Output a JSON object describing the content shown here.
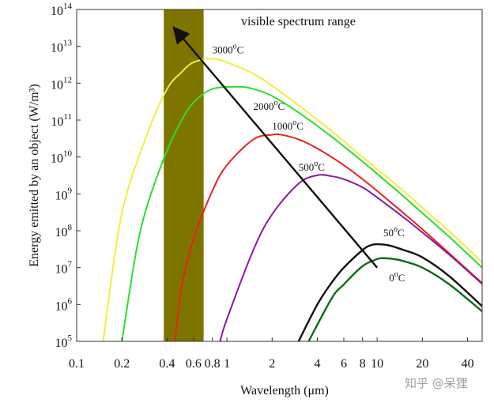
{
  "chart_data": {
    "type": "line",
    "title": "",
    "xlabel": "Wavelength (μm)",
    "ylabel": "Energy emitted by an object (W/m³)",
    "x_scale": "log",
    "y_scale": "log",
    "xlim": [
      0.1,
      50
    ],
    "ylim": [
      100000,
      100000000000000
    ],
    "x_ticks": [
      {
        "value": 0.1,
        "label": "0.1"
      },
      {
        "value": 0.2,
        "label": "0.2"
      },
      {
        "value": 0.4,
        "label": "0.4"
      },
      {
        "value": 0.6,
        "label": "0.6"
      },
      {
        "value": 0.8,
        "label": "0.8"
      },
      {
        "value": 1,
        "label": "1"
      },
      {
        "value": 2,
        "label": "2"
      },
      {
        "value": 4,
        "label": "4"
      },
      {
        "value": 6,
        "label": "6"
      },
      {
        "value": 8,
        "label": "8"
      },
      {
        "value": 10,
        "label": "10"
      },
      {
        "value": 20,
        "label": "20"
      },
      {
        "value": 40,
        "label": "40"
      }
    ],
    "y_ticks": [
      {
        "value": 100000,
        "base": "10",
        "exp": "5"
      },
      {
        "value": 1000000,
        "base": "10",
        "exp": "6"
      },
      {
        "value": 10000000,
        "base": "10",
        "exp": "7"
      },
      {
        "value": 100000000,
        "base": "10",
        "exp": "8"
      },
      {
        "value": 1000000000,
        "base": "10",
        "exp": "9"
      },
      {
        "value": 10000000000,
        "base": "10",
        "exp": "10"
      },
      {
        "value": 100000000000,
        "base": "10",
        "exp": "11"
      },
      {
        "value": 1000000000000,
        "base": "10",
        "exp": "12"
      },
      {
        "value": 10000000000000,
        "base": "10",
        "exp": "13"
      },
      {
        "value": 100000000000000,
        "base": "10",
        "exp": "14"
      }
    ],
    "band": {
      "label": "visible spectrum range",
      "x_range": [
        0.38,
        0.7
      ],
      "color": "#7d7500"
    },
    "arrow": {
      "from": [
        10,
        10000000
      ],
      "to": [
        0.45,
        30000000000000
      ],
      "color": "#111111"
    },
    "series": [
      {
        "name": "3000°C",
        "label_text": "3000",
        "label_sup": "o",
        "label_suffix": "C",
        "label_at": [
          0.8,
          6500000000000
        ],
        "color": "#f2ee3a",
        "points": [
          [
            0.15,
            100000
          ],
          [
            0.2,
            300000000
          ],
          [
            0.3,
            50000000000
          ],
          [
            0.4,
            700000000000
          ],
          [
            0.5,
            2000000000000
          ],
          [
            0.6,
            3700000000000
          ],
          [
            0.8,
            4600000000000
          ],
          [
            1,
            3700000000000
          ],
          [
            1.5,
            1800000000000
          ],
          [
            2,
            850000000000
          ],
          [
            3,
            250000000000
          ],
          [
            5,
            50000000000
          ],
          [
            8,
            10000000000
          ],
          [
            10,
            4700000000
          ],
          [
            15,
            1200000000
          ],
          [
            20,
            420000000
          ],
          [
            30,
            100000000
          ],
          [
            50,
            14000000
          ]
        ]
      },
      {
        "name": "2000°C",
        "label_text": "2000",
        "label_sup": "o",
        "label_suffix": "C",
        "label_at": [
          1.5,
          190000000000
        ],
        "color": "#2fdc32",
        "points": [
          [
            0.2,
            100000
          ],
          [
            0.25,
            30000000
          ],
          [
            0.3,
            600000000
          ],
          [
            0.4,
            15000000000
          ],
          [
            0.5,
            100000000000
          ],
          [
            0.6,
            300000000000
          ],
          [
            0.8,
            700000000000
          ],
          [
            1.2,
            800000000000
          ],
          [
            1.5,
            700000000000
          ],
          [
            2,
            450000000000
          ],
          [
            3,
            160000000000
          ],
          [
            5,
            35000000000
          ],
          [
            8,
            7500000000
          ],
          [
            10,
            3500000000
          ],
          [
            15,
            850000000
          ],
          [
            20,
            300000000
          ],
          [
            30,
            70000000
          ],
          [
            50,
            10000000
          ]
        ]
      },
      {
        "name": "1000°C",
        "label_text": "1000",
        "label_sup": "o",
        "label_suffix": "C",
        "label_at": [
          2,
          55000000000
        ],
        "color": "#e8231c",
        "points": [
          [
            0.45,
            100000
          ],
          [
            0.5,
            3000000
          ],
          [
            0.6,
            60000000
          ],
          [
            0.8,
            1200000000
          ],
          [
            1,
            6000000000
          ],
          [
            1.5,
            30000000000
          ],
          [
            2,
            40000000000
          ],
          [
            2.3,
            40000000000
          ],
          [
            3,
            30000000000
          ],
          [
            4,
            17000000000
          ],
          [
            6,
            6000000000
          ],
          [
            8,
            2500000000
          ],
          [
            10,
            1200000000
          ],
          [
            15,
            300000000
          ],
          [
            20,
            110000000
          ],
          [
            30,
            25000000
          ],
          [
            50,
            3800000
          ]
        ]
      },
      {
        "name": "500°C",
        "label_text": "500",
        "label_sup": "o",
        "label_suffix": "C",
        "label_at": [
          3,
          4200000000
        ],
        "color": "#8b1a96",
        "points": [
          [
            0.9,
            100000
          ],
          [
            1,
            400000
          ],
          [
            1.5,
            30000000
          ],
          [
            2,
            280000000
          ],
          [
            3,
            1900000000
          ],
          [
            4,
            3200000000
          ],
          [
            5,
            3000000000
          ],
          [
            6,
            2500000000
          ],
          [
            8,
            1500000000
          ],
          [
            10,
            800000000
          ],
          [
            15,
            230000000
          ],
          [
            20,
            90000000
          ],
          [
            30,
            23000000
          ],
          [
            50,
            3600000
          ]
        ]
      },
      {
        "name": "50°C",
        "label_text": "50",
        "label_sup": "o",
        "label_suffix": "C",
        "label_at": [
          11,
          70000000
        ],
        "color": "#111111",
        "points": [
          [
            3,
            100000
          ],
          [
            4,
            1000000
          ],
          [
            5,
            4000000
          ],
          [
            6,
            10000000
          ],
          [
            8,
            30000000
          ],
          [
            9,
            40000000
          ],
          [
            10,
            43000000
          ],
          [
            12,
            40000000
          ],
          [
            15,
            30000000
          ],
          [
            20,
            19000000
          ],
          [
            30,
            6000000
          ],
          [
            50,
            900000
          ]
        ]
      },
      {
        "name": "0°C",
        "label_text": "0",
        "label_sup": "o",
        "label_suffix": "C",
        "label_at": [
          12,
          4300000
        ],
        "color": "#0f6b1a",
        "points": [
          [
            3.5,
            100000
          ],
          [
            5,
            1500000
          ],
          [
            6,
            3500000
          ],
          [
            8,
            11000000
          ],
          [
            10,
            17000000
          ],
          [
            11,
            18000000
          ],
          [
            13,
            17000000
          ],
          [
            15,
            15000000
          ],
          [
            20,
            10000000
          ],
          [
            30,
            3600000
          ],
          [
            50,
            650000
          ]
        ]
      }
    ]
  },
  "watermark": "知乎 @呆狸"
}
